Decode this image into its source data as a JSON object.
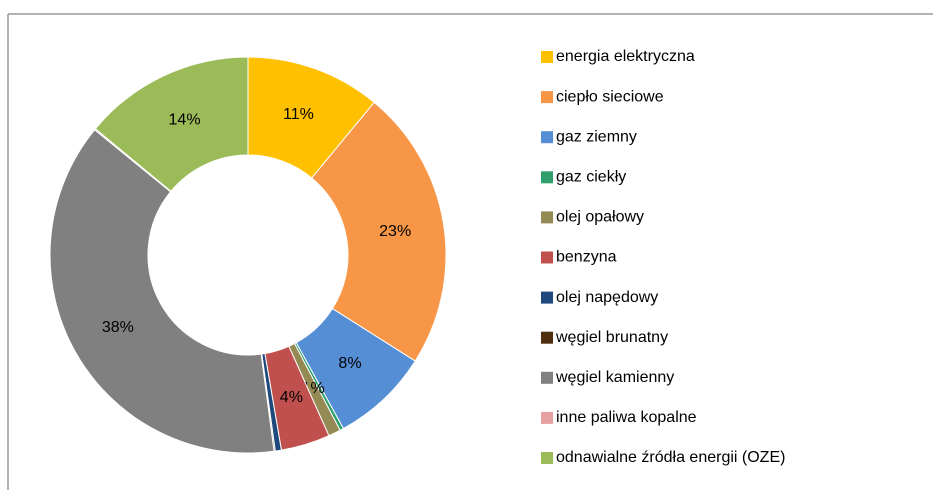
{
  "chart_data": {
    "type": "donut",
    "categories": [
      "energia elektryczna",
      "ciepło sieciowe",
      "gaz ziemny",
      "gaz ciekły",
      "olej opałowy",
      "benzyna",
      "olej napędowy",
      "węgiel brunatny",
      "węgiel kamienny",
      "inne paliwa kopalne",
      "odnawialne źródła energii (OZE)"
    ],
    "values": [
      11,
      23,
      8,
      0.3,
      1,
      4,
      0.5,
      0.1,
      38,
      0.1,
      14
    ],
    "value_labels": [
      "11%",
      "23%",
      "8%",
      null,
      "1%",
      "4%",
      null,
      null,
      "38%",
      null,
      "14%"
    ],
    "colors": [
      "#FFC000",
      "#F79646",
      "#558ED5",
      "#2E9E6B",
      "#948A54",
      "#C0504D",
      "#1F497D",
      "#4F2F0F",
      "#808080",
      "#E6A0A0",
      "#9BBB59"
    ],
    "legend": "right"
  }
}
